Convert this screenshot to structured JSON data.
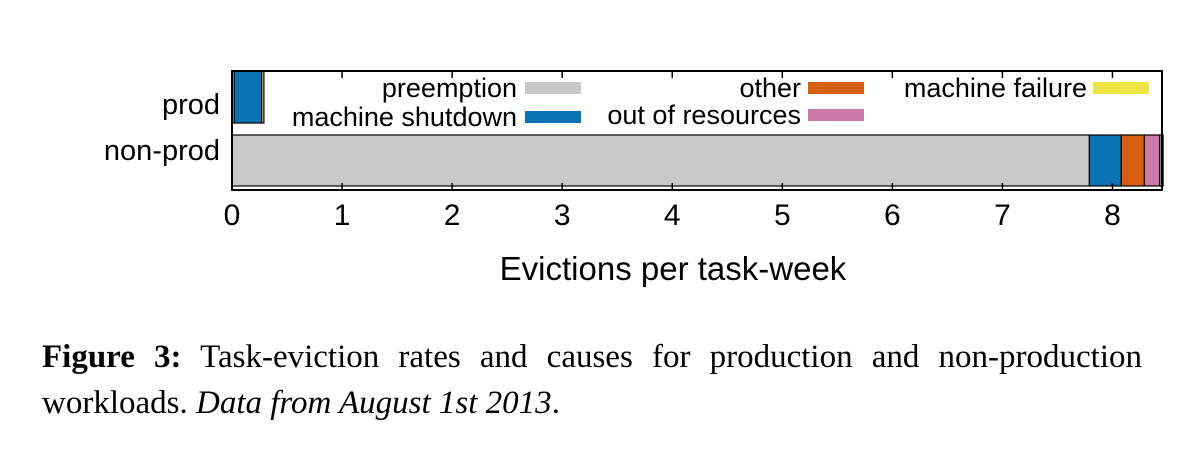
{
  "chart_data": {
    "type": "bar",
    "orientation": "horizontal",
    "stacked": true,
    "categories": [
      "prod",
      "non-prod"
    ],
    "series": [
      {
        "name": "preemption",
        "color": "#c8c8c8",
        "values": [
          0.02,
          7.79
        ]
      },
      {
        "name": "machine shutdown",
        "color": "#0a72b5",
        "values": [
          0.25,
          0.29
        ]
      },
      {
        "name": "other",
        "color": "#d95f0e",
        "values": [
          0.0,
          0.21
        ]
      },
      {
        "name": "out of resources",
        "color": "#cc79a7",
        "values": [
          0.0,
          0.14
        ]
      },
      {
        "name": "machine failure",
        "color": "#f0e442",
        "values": [
          0.02,
          0.03
        ]
      }
    ],
    "xlabel": "Evictions per task-week",
    "xlim": [
      0,
      8.45
    ],
    "xticks": [
      "0",
      "1",
      "2",
      "3",
      "4",
      "5",
      "6",
      "7",
      "8"
    ],
    "grid": false,
    "legend": "top, inside plot"
  },
  "caption": {
    "label": "Figure 3:",
    "text": "Task-eviction rates and causes for production and non-production workloads.",
    "note": "Data from August 1st 2013"
  }
}
